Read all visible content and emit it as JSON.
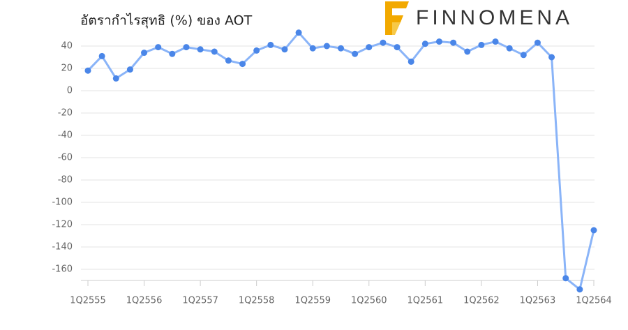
{
  "chart_data": {
    "type": "line",
    "title": "อัตรากำไรสุทธิ (%) ของ AOT",
    "logo": "FINNOMENA",
    "categories": [
      "1Q2555",
      null,
      null,
      null,
      "1Q2556",
      null,
      null,
      null,
      "1Q2557",
      null,
      null,
      null,
      "1Q2558",
      null,
      null,
      null,
      "1Q2559",
      null,
      null,
      null,
      "1Q2560",
      null,
      null,
      null,
      "1Q2561",
      null,
      null,
      null,
      "1Q2562",
      null,
      null,
      null,
      "1Q2563",
      null,
      null,
      null,
      "1Q2564"
    ],
    "series": [
      {
        "name": "AOT",
        "color": "#8ab4f8",
        "marker_color": "#4a86e8",
        "values": [
          18,
          31,
          11,
          19,
          34,
          39,
          33,
          39,
          37,
          35,
          27,
          24,
          36,
          41,
          37,
          52,
          38,
          40,
          38,
          33,
          39,
          43,
          39,
          26,
          42,
          44,
          43,
          35,
          41,
          44,
          38,
          32,
          43,
          30,
          -168,
          -178,
          -125
        ]
      }
    ],
    "ylim": [
      -180,
      50
    ],
    "yticks": [
      40,
      20,
      0,
      -20,
      -40,
      -60,
      -80,
      -100,
      -120,
      -140,
      -160
    ],
    "grid": true
  }
}
